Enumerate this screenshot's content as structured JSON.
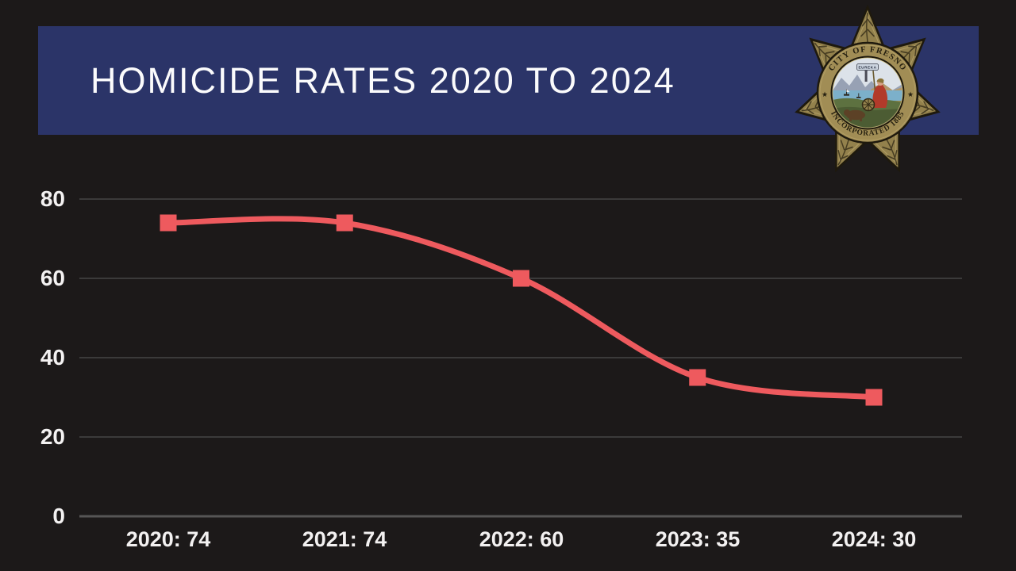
{
  "header": {
    "title": "HOMICIDE RATES 2020 TO 2024",
    "banner_color": "#2b3468"
  },
  "badge": {
    "ring_text_top": "CITY OF FRESNO",
    "ring_text_bottom": "INCORPORATED 1885",
    "seal_motto": "EUREKA",
    "star_left": "★",
    "star_right": "★",
    "gold_color": "#a18d55"
  },
  "chart_data": {
    "type": "line",
    "title": "HOMICIDE RATES 2020 TO 2024",
    "x": [
      2020,
      2021,
      2022,
      2023,
      2024
    ],
    "values": [
      74,
      74,
      60,
      35,
      30
    ],
    "categories": [
      "2020: 74",
      "2021: 74",
      "2022: 60",
      "2023: 35",
      "2024: 30"
    ],
    "y_ticks": [
      0,
      20,
      40,
      60,
      80
    ],
    "y_tick_labels_desc": [
      "80",
      "60",
      "40",
      "20",
      "0"
    ],
    "ylim": [
      0,
      80
    ],
    "grid": true,
    "legend": "none",
    "line_color": "#ee5a5e",
    "marker": "square",
    "background": "#1c1919"
  }
}
